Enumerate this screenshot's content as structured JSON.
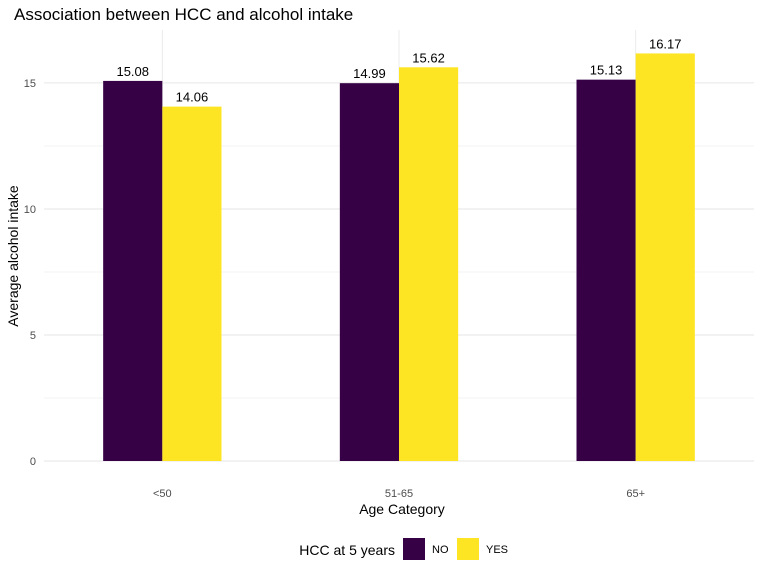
{
  "chart_data": {
    "type": "bar",
    "title": "Association between HCC and alcohol intake",
    "xlabel": "Age Category",
    "ylabel": "Average alcohol intake",
    "categories": [
      "<50",
      "51-65",
      "65+"
    ],
    "series": [
      {
        "name": "NO",
        "color": "#360145",
        "values": [
          15.08,
          14.99,
          15.13
        ],
        "labels": [
          "15.08",
          "14.99",
          "15.13"
        ]
      },
      {
        "name": "YES",
        "color": "#FDE523",
        "values": [
          14.06,
          15.62,
          16.17
        ],
        "labels": [
          "14.06",
          "15.62",
          "16.17"
        ]
      }
    ],
    "ylim": [
      0,
      17.1
    ],
    "yticks": [
      0,
      5,
      10,
      15
    ],
    "ytick_labels": [
      "0",
      "5",
      "10",
      "15"
    ],
    "grid": true,
    "legend": {
      "title": "HCC at 5 years",
      "position": "bottom"
    }
  }
}
